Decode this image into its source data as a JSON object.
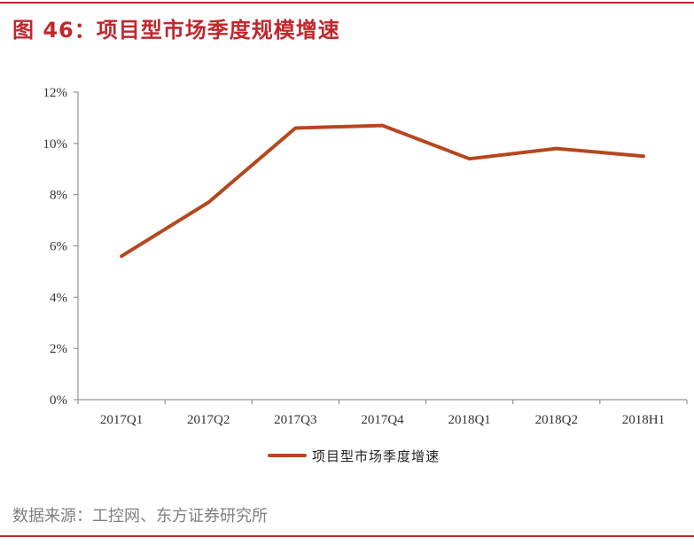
{
  "header": {
    "title": "图 46：项目型市场季度规模增速"
  },
  "footer": {
    "source": "数据来源：工控网、东方证券研究所"
  },
  "colors": {
    "accent": "#c0272d",
    "series": "#b5471f",
    "axis": "#7f7f7f"
  },
  "chart_data": {
    "type": "line",
    "title": "",
    "xlabel": "",
    "ylabel": "",
    "categories": [
      "2017Q1",
      "2017Q2",
      "2017Q3",
      "2017Q4",
      "2018Q1",
      "2018Q2",
      "2018H1"
    ],
    "series": [
      {
        "name": "项目型市场季度增速",
        "values": [
          5.6,
          7.7,
          10.6,
          10.7,
          9.4,
          9.8,
          9.5
        ]
      }
    ],
    "ylim": [
      0,
      12
    ],
    "yticks": [
      0,
      2,
      4,
      6,
      8,
      10,
      12
    ],
    "ytick_labels": [
      "0%",
      "2%",
      "4%",
      "6%",
      "8%",
      "10%",
      "12%"
    ],
    "grid": false,
    "legend": "bottom"
  }
}
